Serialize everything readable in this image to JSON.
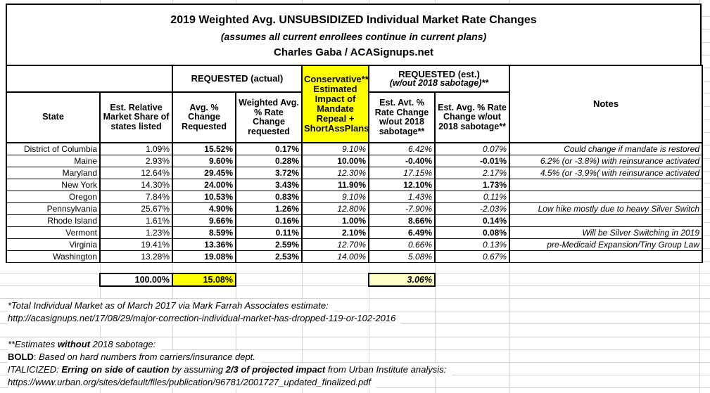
{
  "title": {
    "line1": "2019 Weighted Avg. UNSUBSIDIZED Individual Market Rate Changes",
    "line2": "(assumes all current enrollees continue in current plans)",
    "line3": "Charles Gaba / ACASignups.net"
  },
  "colors": {
    "highlight_yellow": "#FFFF00",
    "pale_yellow": "#FFFFC8",
    "gridline_gray": "#D4D4D4",
    "border_black": "#000000"
  },
  "table": {
    "header": {
      "requested_actual": "REQUESTED (actual)",
      "requested_est_line1": "REQUESTED (est.)",
      "requested_est_line2": "(w/out 2018 sabotage)**",
      "conservative": "Conservative** Estimated Impact of Mandate Repeal + ShortAssPlans",
      "notes": "Notes",
      "state": "State",
      "share": "Est. Relative Market Share of states listed",
      "avg_change": "Avg. % Change Requested",
      "weighted": "Weighted Avg. % Rate Change requested",
      "est_avt": "Est. Avt. % Rate Change w/out 2018 sabotage**",
      "est_avg": "Est. Avg. % Rate Change w/out 2018 sabotage**"
    },
    "rows": [
      {
        "state": "District of Columbia",
        "share": "1.09%",
        "requested": "15.52%",
        "weighted": "0.17%",
        "impact": "9.10%",
        "no_sabotage_avt": "6.42%",
        "no_sabotage_avg": "0.07%",
        "style": "estimate",
        "note": "Could change if mandate is restored"
      },
      {
        "state": "Maine",
        "share": "2.93%",
        "requested": "9.60%",
        "weighted": "0.28%",
        "impact": "10.00%",
        "no_sabotage_avt": "-0.40%",
        "no_sabotage_avg": "-0.01%",
        "style": "hard",
        "note": "6.2% (or -3.8%) with reinsurance activated"
      },
      {
        "state": "Maryland",
        "share": "12.64%",
        "requested": "29.45%",
        "weighted": "3.72%",
        "impact": "12.30%",
        "no_sabotage_avt": "17.15%",
        "no_sabotage_avg": "2.17%",
        "style": "estimate",
        "note": "4.5% (or -3,9%( with reinsurance activated"
      },
      {
        "state": "New York",
        "share": "14.30%",
        "requested": "24.00%",
        "weighted": "3.43%",
        "impact": "11.90%",
        "no_sabotage_avt": "12.10%",
        "no_sabotage_avg": "1.73%",
        "style": "hard",
        "note": ""
      },
      {
        "state": "Oregon",
        "share": "7.84%",
        "requested": "10.53%",
        "weighted": "0.83%",
        "impact": "9.10%",
        "no_sabotage_avt": "1.43%",
        "no_sabotage_avg": "0.11%",
        "style": "estimate",
        "note": ""
      },
      {
        "state": "Pennsylvania",
        "share": "25.67%",
        "requested": "4.90%",
        "weighted": "1.26%",
        "impact": "12.80%",
        "no_sabotage_avt": "-7.90%",
        "no_sabotage_avg": "-2.03%",
        "style": "estimate",
        "note": "Low hike mostly due to heavy Silver Switch"
      },
      {
        "state": "Rhode Island",
        "share": "1.61%",
        "requested": "9.66%",
        "weighted": "0.16%",
        "impact": "1.00%",
        "no_sabotage_avt": "8.66%",
        "no_sabotage_avg": "0.14%",
        "style": "hard",
        "note": ""
      },
      {
        "state": "Vermont",
        "share": "1.23%",
        "requested": "8.59%",
        "weighted": "0.11%",
        "impact": "2.10%",
        "no_sabotage_avt": "6.49%",
        "no_sabotage_avg": "0.08%",
        "style": "hard",
        "note": "Will be Silver Switching in 2019"
      },
      {
        "state": "Virginia",
        "share": "19.41%",
        "requested": "13.36%",
        "weighted": "2.59%",
        "impact": "12.70%",
        "no_sabotage_avt": "0.66%",
        "no_sabotage_avg": "0.13%",
        "style": "estimate",
        "note": "pre-Medicaid Expansion/Tiny Group Law"
      },
      {
        "state": "Washington",
        "share": "13.28%",
        "requested": "19.08%",
        "weighted": "2.53%",
        "impact": "14.00%",
        "no_sabotage_avt": "5.08%",
        "no_sabotage_avg": "0.67%",
        "style": "estimate",
        "note": ""
      }
    ],
    "totals": {
      "share_total": "100.00%",
      "requested_total": "15.08%",
      "no_sabotage_total": "3.06%"
    }
  },
  "footnotes": [
    {
      "runs": [
        {
          "t": "*Total Individual Market as of March 2017 via Mark Farrah Associates estimate:",
          "i": true
        }
      ]
    },
    {
      "runs": [
        {
          "t": "http://acasignups.net/17/08/29/major-correction-individual-market-has-dropped-119-or-102-2016",
          "i": true
        }
      ]
    },
    {
      "runs": [
        {
          "t": "**Estimates ",
          "i": true
        },
        {
          "t": "without",
          "i": true,
          "b": true
        },
        {
          "t": " 2018 sabotage:",
          "i": true
        }
      ]
    },
    {
      "runs": [
        {
          "t": "BOLD",
          "b": true
        },
        {
          "t": ": "
        },
        {
          "t": "Based on hard numbers from carriers/insurance dept.",
          "i": true
        }
      ]
    },
    {
      "runs": [
        {
          "t": "ITALICIZED: ",
          "i": true
        },
        {
          "t": "Erring on side of caution",
          "i": true,
          "b": true
        },
        {
          "t": " by assuming ",
          "i": true
        },
        {
          "t": "2/3 of projected impact",
          "i": true,
          "b": true
        },
        {
          "t": " from Urban Institute analysis:",
          "i": true
        }
      ]
    },
    {
      "runs": [
        {
          "t": "https://www.urban.org/sites/default/files/publication/96781/2001727_updated_finalized.pdf",
          "i": true
        }
      ]
    }
  ]
}
